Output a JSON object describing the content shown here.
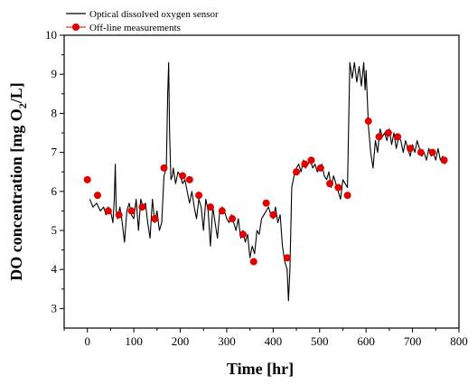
{
  "chart_data": {
    "type": "line",
    "title": "",
    "xlabel": "Time [hr]",
    "ylabel_main": "DO concentration [mg O",
    "ylabel_sub": "2",
    "ylabel_end": "/L]",
    "xlim": [
      -50,
      800
    ],
    "ylim": [
      2.5,
      10
    ],
    "xticks": [
      0,
      100,
      200,
      300,
      400,
      500,
      600,
      700,
      800
    ],
    "yticks": [
      3,
      4,
      5,
      6,
      7,
      8,
      9,
      10
    ],
    "grid": false,
    "legend_position": "top-left",
    "series": [
      {
        "name": "Optical dissolved oxygen sensor",
        "type": "line",
        "color": "#000000",
        "x": [
          5,
          12,
          20,
          28,
          35,
          40,
          45,
          50,
          55,
          58,
          60,
          62,
          65,
          70,
          75,
          80,
          85,
          90,
          95,
          100,
          105,
          110,
          115,
          120,
          125,
          130,
          135,
          140,
          145,
          150,
          155,
          160,
          165,
          170,
          173,
          175,
          177,
          180,
          183,
          185,
          190,
          195,
          200,
          205,
          210,
          215,
          220,
          225,
          230,
          235,
          240,
          245,
          250,
          255,
          260,
          265,
          270,
          275,
          280,
          285,
          290,
          295,
          300,
          305,
          310,
          315,
          320,
          325,
          330,
          335,
          340,
          345,
          350,
          355,
          360,
          365,
          370,
          375,
          380,
          385,
          390,
          395,
          400,
          405,
          410,
          415,
          420,
          425,
          430,
          433,
          436,
          440,
          445,
          450,
          455,
          460,
          465,
          470,
          475,
          480,
          485,
          490,
          495,
          500,
          505,
          510,
          515,
          520,
          525,
          530,
          535,
          540,
          545,
          550,
          555,
          560,
          565,
          570,
          575,
          580,
          585,
          590,
          595,
          598,
          600,
          603,
          605,
          610,
          615,
          620,
          625,
          630,
          635,
          640,
          645,
          650,
          655,
          660,
          665,
          670,
          675,
          680,
          685,
          690,
          695,
          700,
          705,
          710,
          715,
          720,
          725,
          730,
          735,
          740,
          745,
          750,
          755,
          760,
          765,
          770
        ],
        "y": [
          5.8,
          5.6,
          5.7,
          5.5,
          5.6,
          5.4,
          5.6,
          5.5,
          5.2,
          5.8,
          6.7,
          5.5,
          5.3,
          5.6,
          5.2,
          4.7,
          5.5,
          5.7,
          5.4,
          5.3,
          5.8,
          5.0,
          5.8,
          5.6,
          5.7,
          5.2,
          4.8,
          5.8,
          5.2,
          5.5,
          5.0,
          5.2,
          6.4,
          6.6,
          8.5,
          9.3,
          7.5,
          6.3,
          6.4,
          6.6,
          6.2,
          6.5,
          6.4,
          6.2,
          6.3,
          6.0,
          5.7,
          6.0,
          5.6,
          5.3,
          5.8,
          5.6,
          5.0,
          5.8,
          5.5,
          4.6,
          5.6,
          5.2,
          4.8,
          5.5,
          5.6,
          5.5,
          5.3,
          5.2,
          5.4,
          5.2,
          5.0,
          5.3,
          4.8,
          5.0,
          4.7,
          4.9,
          4.3,
          4.6,
          4.4,
          5.0,
          4.9,
          5.3,
          5.4,
          5.5,
          5.6,
          5.4,
          5.3,
          5.6,
          5.2,
          5.4,
          4.6,
          4.2,
          4.0,
          3.2,
          4.0,
          6.1,
          6.4,
          6.6,
          6.7,
          6.5,
          6.8,
          6.6,
          6.7,
          6.8,
          6.6,
          6.7,
          6.5,
          6.6,
          6.7,
          6.4,
          6.3,
          6.5,
          6.1,
          6.4,
          6.2,
          6.0,
          5.8,
          6.3,
          6.2,
          6.1,
          9.3,
          8.9,
          9.3,
          8.8,
          9.2,
          8.7,
          9.3,
          8.6,
          9.1,
          8.3,
          7.7,
          7.0,
          6.6,
          7.3,
          7.0,
          7.6,
          7.4,
          7.5,
          7.3,
          7.6,
          7.2,
          7.5,
          7.1,
          7.4,
          7.3,
          7.0,
          7.3,
          7.1,
          6.9,
          7.2,
          7.0,
          7.3,
          7.1,
          6.9,
          7.0,
          6.8,
          7.1,
          6.9,
          7.0,
          6.8,
          7.1,
          6.8,
          6.9,
          6.7
        ]
      },
      {
        "name": "Off-line measurements",
        "type": "scatter",
        "color": "#e00000",
        "x": [
          0,
          22,
          45,
          68,
          95,
          118,
          145,
          165,
          205,
          220,
          240,
          265,
          290,
          312,
          335,
          358,
          385,
          400,
          430,
          450,
          468,
          482,
          502,
          522,
          540,
          560,
          605,
          628,
          648,
          668,
          695,
          718,
          743,
          768
        ],
        "y": [
          6.3,
          5.9,
          5.5,
          5.4,
          5.5,
          5.6,
          5.3,
          6.6,
          6.4,
          6.3,
          5.9,
          5.6,
          5.5,
          5.3,
          4.9,
          4.2,
          5.7,
          5.4,
          4.3,
          6.5,
          6.7,
          6.8,
          6.6,
          6.2,
          6.1,
          5.9,
          7.8,
          7.4,
          7.5,
          7.4,
          7.1,
          7.0,
          7.0,
          6.8
        ]
      }
    ]
  }
}
